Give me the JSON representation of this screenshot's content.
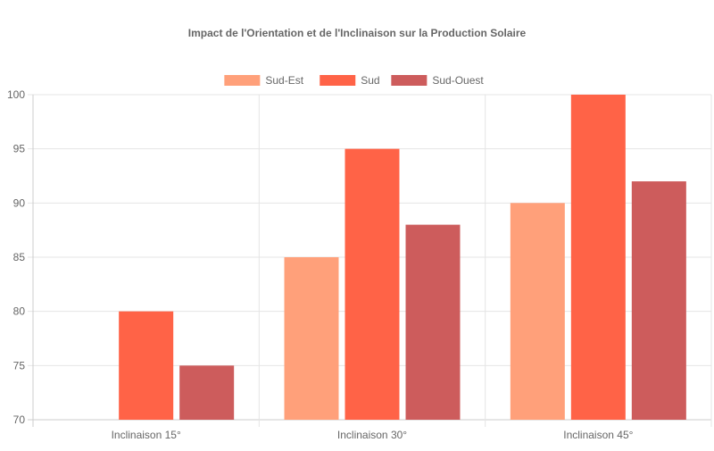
{
  "chart_data": {
    "type": "bar",
    "title": "Impact de l'Orientation et de l'Inclinaison sur la Production Solaire",
    "categories": [
      "Inclinaison 15°",
      "Inclinaison 30°",
      "Inclinaison 45°"
    ],
    "series": [
      {
        "name": "Sud-Est",
        "values": [
          70,
          85,
          90
        ],
        "color": "#FFA07A"
      },
      {
        "name": "Sud",
        "values": [
          80,
          95,
          100
        ],
        "color": "#FF6347"
      },
      {
        "name": "Sud-Ouest",
        "values": [
          75,
          88,
          92
        ],
        "color": "#CD5C5C"
      }
    ],
    "ylim": [
      70,
      100
    ],
    "yticks": [
      70,
      75,
      80,
      85,
      90,
      95,
      100
    ],
    "grid": true,
    "legend": "top"
  }
}
